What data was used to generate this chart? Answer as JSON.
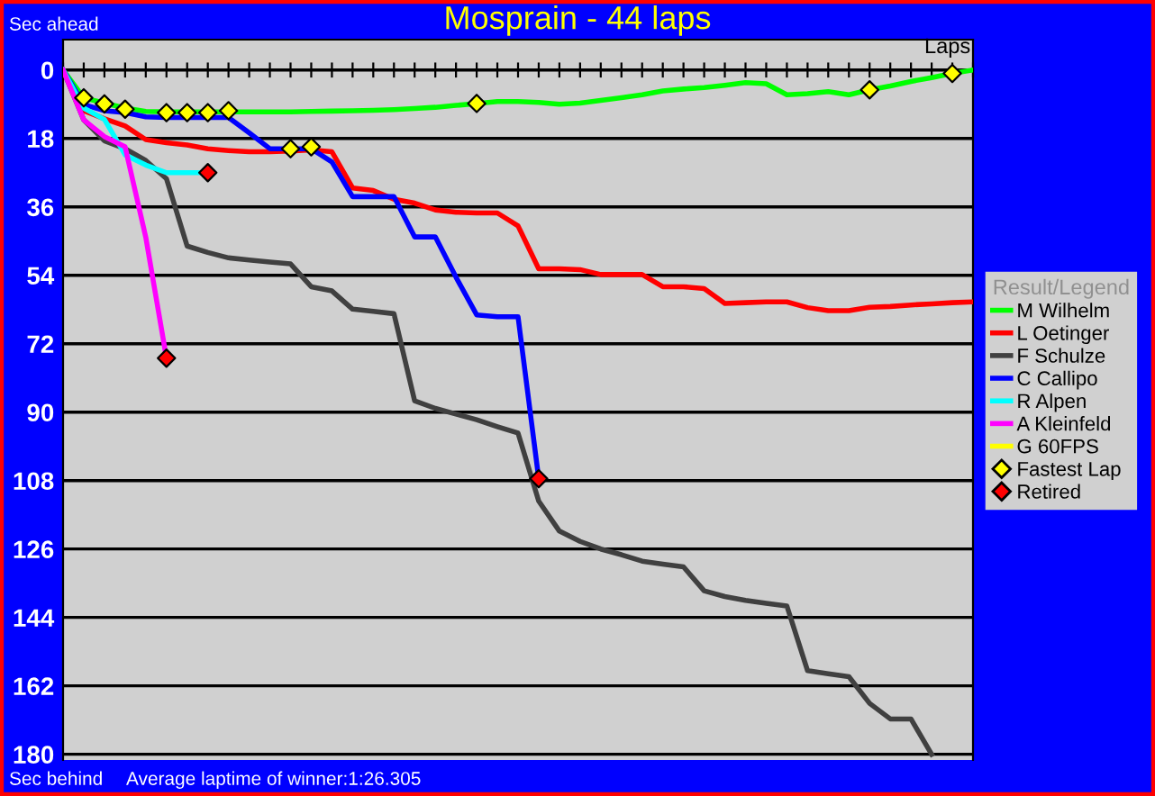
{
  "chart_data": {
    "type": "line",
    "title": "Mosprain - 44 laps",
    "xlabel": "Laps",
    "legend_title": "Result/Legend",
    "annotations": [
      "Sec ahead",
      "Sec behind",
      "Average laptime of winner:1:26.305"
    ],
    "categories": [
      null,
      null,
      null,
      null,
      null,
      null,
      null,
      null,
      null,
      null,
      null,
      null,
      null,
      null,
      null,
      null,
      null,
      null,
      null,
      null,
      null,
      null,
      null,
      null,
      null,
      null,
      null,
      null,
      null,
      null,
      null,
      null,
      null,
      null,
      null,
      null,
      null,
      null,
      null,
      null,
      null,
      null,
      null,
      null,
      null
    ],
    "ylim": [
      181.5,
      -8
    ],
    "yticks": [
      0,
      18,
      36,
      54,
      72,
      90,
      108,
      126,
      144,
      162,
      180
    ],
    "grid": "y",
    "legend": "right",
    "tick_labels": "y",
    "marker": "none",
    "line_style": "solid",
    "series": [
      {
        "name": "M Wilhelm",
        "color": "#00ff00",
        "values": [
          0,
          7.3,
          8.7,
          10,
          10.9,
          11,
          11,
          11,
          11,
          11,
          11,
          11,
          10.9,
          10.8,
          10.7,
          10.6,
          10.4,
          10.1,
          9.8,
          9.3,
          8.8,
          8.3,
          8.3,
          8.5,
          9,
          8.7,
          8,
          7.3,
          6.5,
          5.5,
          5,
          4.6,
          4,
          3.3,
          3.6,
          6.5,
          6.2,
          5.7,
          6.5,
          5.2,
          4.2,
          3,
          2,
          0.9,
          0
        ]
      },
      {
        "name": "L Oetinger",
        "color": "#ff0000",
        "values": [
          0,
          10.7,
          12.8,
          14.7,
          18.3,
          19.1,
          19.7,
          20.7,
          21.2,
          21.5,
          21.5,
          21.3,
          21,
          21.5,
          31,
          31.7,
          34,
          35,
          36.8,
          37.4,
          37.6,
          37.6,
          41,
          52.3,
          52.3,
          52.5,
          53.8,
          53.8,
          53.8,
          57,
          57,
          57.5,
          61.4,
          61.2,
          61,
          61,
          62.5,
          63.3,
          63.3,
          62.4,
          62.2,
          61.8,
          61.5,
          61.2,
          61
        ]
      },
      {
        "name": "F Schulze",
        "color": "#404040",
        "values": [
          0,
          13.1,
          18.6,
          20.7,
          23.8,
          28.6,
          46.3,
          48,
          49.4,
          50,
          50.5,
          51,
          57,
          58.1,
          62.9,
          63.5,
          64.1,
          87,
          89,
          90.5,
          92,
          93.8,
          95.5,
          113.4,
          121.3,
          124,
          126,
          127.5,
          129.2,
          130,
          130.7,
          137,
          138.5,
          139.5,
          140.3,
          141,
          158,
          158.8,
          159.6,
          166.6,
          170.7,
          170.7,
          180,
          null,
          null
        ]
      },
      {
        "name": "C Callipo",
        "color": "#0000ff",
        "values": [
          0,
          9.1,
          10.7,
          11.2,
          12.3,
          12.5,
          12.5,
          12.5,
          12.5,
          16.5,
          20.7,
          20.7,
          20.7,
          24.2,
          33.3,
          33.3,
          33.3,
          43.9,
          43.9,
          54.5,
          64.4,
          64.9,
          64.9,
          107.5,
          null,
          null,
          null,
          null,
          null,
          null,
          null,
          null,
          null,
          null,
          null,
          null,
          null,
          null,
          null,
          null,
          null,
          null,
          null,
          null,
          null
        ]
      },
      {
        "name": "R Alpen",
        "color": "#00ffff",
        "values": [
          0,
          10,
          13,
          22.3,
          25,
          27,
          27,
          27,
          null,
          null,
          null,
          null,
          null,
          null,
          null,
          null,
          null,
          null,
          null,
          null,
          null,
          null,
          null,
          null,
          null,
          null,
          null,
          null,
          null,
          null,
          null,
          null,
          null,
          null,
          null,
          null,
          null,
          null,
          null,
          null,
          null,
          null,
          null,
          null,
          null
        ]
      },
      {
        "name": "A Kleinfeld",
        "color": "#ff00ff",
        "values": [
          0,
          13.1,
          17.5,
          20.2,
          44,
          75.8,
          null,
          null,
          null,
          null,
          null,
          null,
          null,
          null,
          null,
          null,
          null,
          null,
          null,
          null,
          null,
          null,
          null,
          null,
          null,
          null,
          null,
          null,
          null,
          null,
          null,
          null,
          null,
          null,
          null,
          null,
          null,
          null,
          null,
          null,
          null,
          null,
          null,
          null,
          null
        ]
      },
      {
        "name": "G 60FPS",
        "color": "#ffff00",
        "values": [
          null,
          null,
          null,
          null,
          null,
          null,
          null,
          null,
          null,
          null,
          null,
          null,
          null,
          null,
          null,
          null,
          null,
          null,
          null,
          null,
          null,
          null,
          null,
          null,
          null,
          null,
          null,
          null,
          null,
          null,
          null,
          null,
          null,
          null,
          null,
          null,
          null,
          null,
          null,
          null,
          null,
          null,
          null,
          null,
          null
        ]
      },
      {
        "name": "Fastest Lap",
        "type": "scatter",
        "marker": "diamond",
        "color": "#ffff00",
        "values": [
          null,
          7.3,
          8.9,
          10.3,
          null,
          11.2,
          11.2,
          11.2,
          10.7,
          null,
          null,
          20.7,
          20.2,
          null,
          null,
          null,
          null,
          null,
          null,
          null,
          8.8,
          null,
          null,
          null,
          null,
          null,
          null,
          null,
          null,
          null,
          null,
          null,
          null,
          null,
          null,
          null,
          null,
          null,
          null,
          5.2,
          null,
          null,
          null,
          0.9,
          null
        ]
      },
      {
        "name": "Retired",
        "type": "scatter",
        "marker": "diamond",
        "color": "#ff0000",
        "values": [
          null,
          null,
          null,
          null,
          null,
          75.8,
          null,
          27,
          null,
          null,
          null,
          null,
          null,
          null,
          null,
          null,
          null,
          null,
          null,
          null,
          null,
          null,
          null,
          107.5,
          null,
          null,
          null,
          null,
          null,
          null,
          null,
          null,
          null,
          null,
          null,
          null,
          null,
          null,
          null,
          null,
          null,
          null,
          null,
          null,
          null
        ]
      }
    ]
  }
}
